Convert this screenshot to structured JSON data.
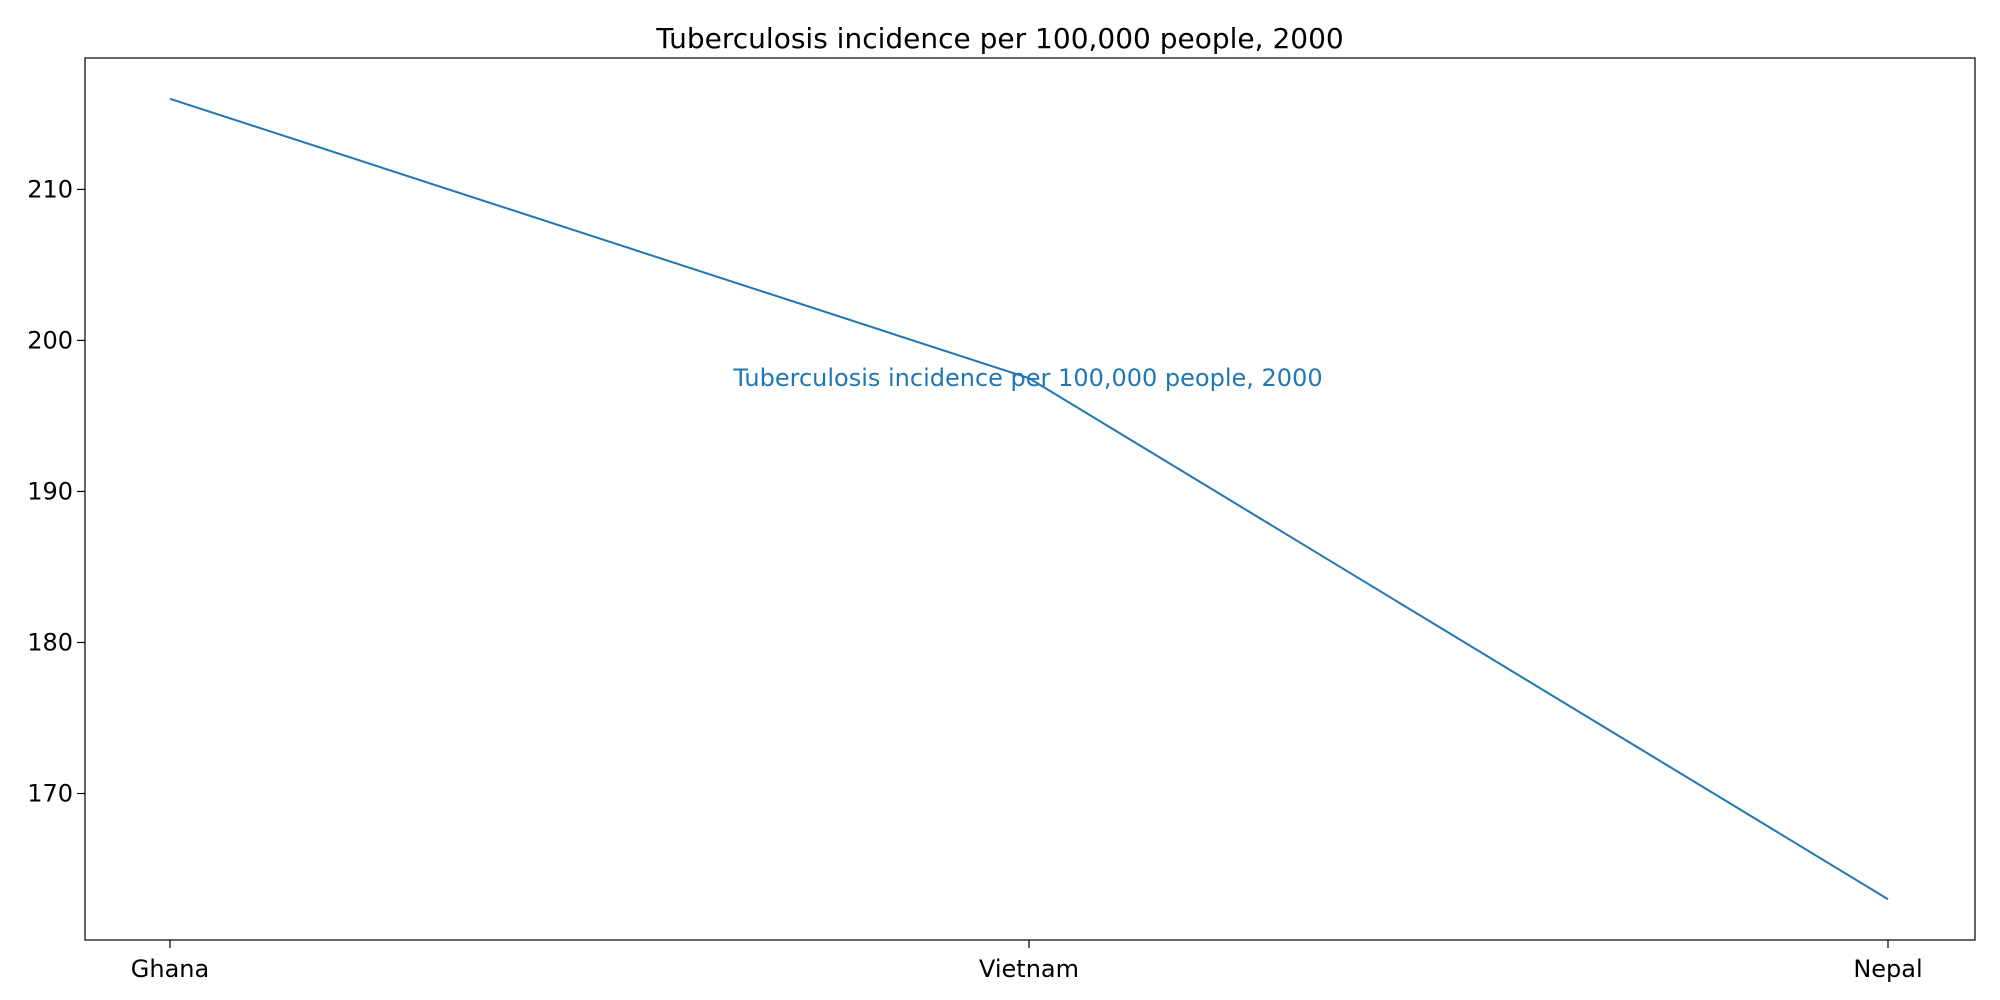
{
  "chart_data": {
    "type": "line",
    "title": "Tuberculosis incidence per 100,000 people, 2000",
    "categories": [
      "Ghana",
      "Vietnam",
      "Nepal"
    ],
    "values": [
      216,
      197.5,
      163
    ],
    "xlabel": "",
    "ylabel": "",
    "ylim": [
      160.3,
      218.7
    ],
    "yticks": [
      170,
      180,
      190,
      200,
      210
    ],
    "grid": false,
    "annotation": "Tuberculosis incidence per 100,000 people, 2000",
    "colors": {
      "series": "#1f77b4",
      "axes": "#000000"
    }
  }
}
